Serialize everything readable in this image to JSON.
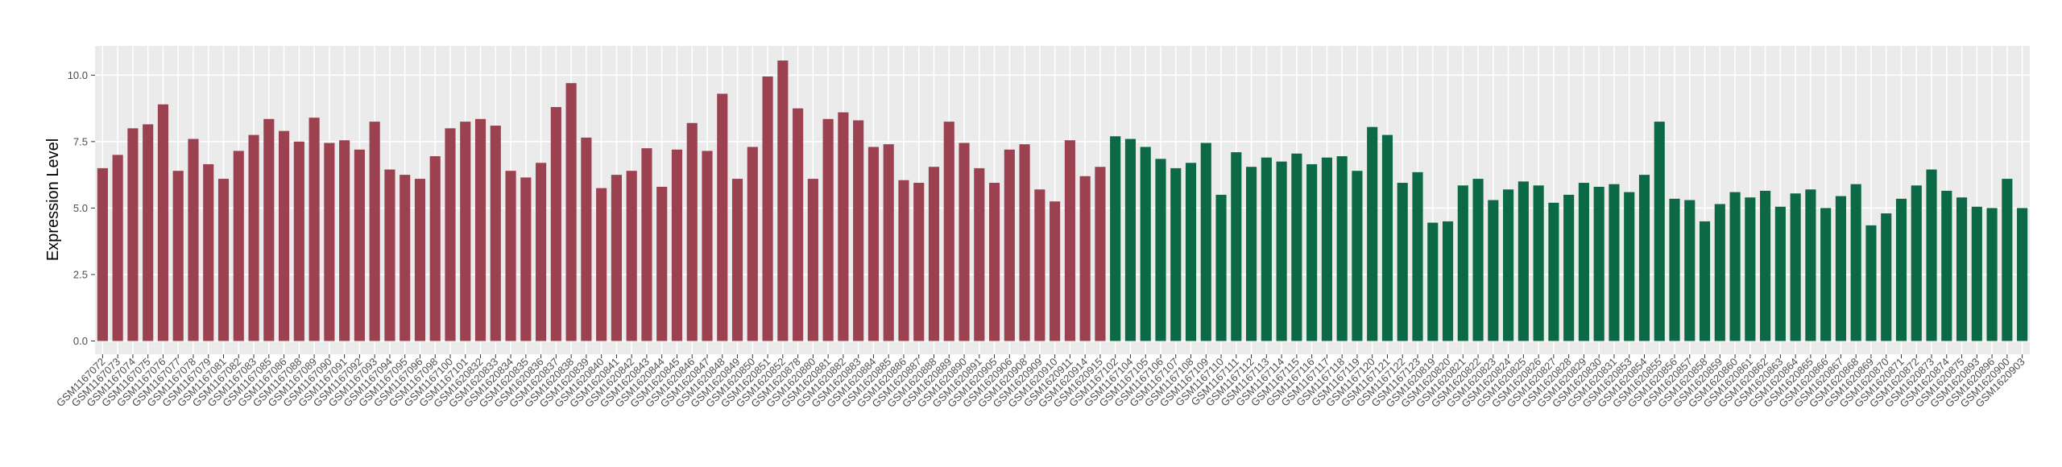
{
  "chart_data": {
    "type": "bar",
    "y_label": "Expression Level",
    "categories": [
      "GSM1167072",
      "GSM1167073",
      "GSM1167074",
      "GSM1167075",
      "GSM1167076",
      "GSM1167077",
      "GSM1167078",
      "GSM1167079",
      "GSM1167081",
      "GSM1167082",
      "GSM1167083",
      "GSM1167085",
      "GSM1167086",
      "GSM1167088",
      "GSM1167089",
      "GSM1167090",
      "GSM1167091",
      "GSM1167092",
      "GSM1167093",
      "GSM1167094",
      "GSM1167095",
      "GSM1167096",
      "GSM1167098",
      "GSM1167100",
      "GSM1167101",
      "GSM1620832",
      "GSM1620833",
      "GSM1620834",
      "GSM1620835",
      "GSM1620836",
      "GSM1620837",
      "GSM1620838",
      "GSM1620839",
      "GSM1620840",
      "GSM1620841",
      "GSM1620842",
      "GSM1620843",
      "GSM1620844",
      "GSM1620845",
      "GSM1620846",
      "GSM1620847",
      "GSM1620848",
      "GSM1620849",
      "GSM1620850",
      "GSM1620851",
      "GSM1620852",
      "GSM1620878",
      "GSM1620880",
      "GSM1620881",
      "GSM1620882",
      "GSM1620883",
      "GSM1620884",
      "GSM1620885",
      "GSM1620886",
      "GSM1620887",
      "GSM1620888",
      "GSM1620889",
      "GSM1620890",
      "GSM1620891",
      "GSM1620905",
      "GSM1620906",
      "GSM1620908",
      "GSM1620909",
      "GSM1620910",
      "GSM1620911",
      "GSM1620914",
      "GSM1620915",
      "GSM1167102",
      "GSM1167104",
      "GSM1167105",
      "GSM1167106",
      "GSM1167107",
      "GSM1167108",
      "GSM1167109",
      "GSM1167110",
      "GSM1167111",
      "GSM1167112",
      "GSM1167113",
      "GSM1167114",
      "GSM1167115",
      "GSM1167116",
      "GSM1167117",
      "GSM1167118",
      "GSM1167119",
      "GSM1167120",
      "GSM1167121",
      "GSM1167122",
      "GSM1167123",
      "GSM1620819",
      "GSM1620820",
      "GSM1620821",
      "GSM1620822",
      "GSM1620823",
      "GSM1620824",
      "GSM1620825",
      "GSM1620826",
      "GSM1620827",
      "GSM1620828",
      "GSM1620829",
      "GSM1620830",
      "GSM1620831",
      "GSM1620853",
      "GSM1620854",
      "GSM1620855",
      "GSM1620856",
      "GSM1620857",
      "GSM1620858",
      "GSM1620859",
      "GSM1620860",
      "GSM1620861",
      "GSM1620862",
      "GSM1620863",
      "GSM1620864",
      "GSM1620865",
      "GSM1620866",
      "GSM1620867",
      "GSM1620868",
      "GSM1620869",
      "GSM1620870",
      "GSM1620871",
      "GSM1620872",
      "GSM1620873",
      "GSM1620874",
      "GSM1620875",
      "GSM1620893",
      "GSM1620896",
      "GSM1620900",
      "GSM1620903"
    ],
    "values": [
      6.5,
      7.0,
      8.0,
      8.15,
      8.9,
      6.4,
      7.6,
      6.65,
      6.1,
      7.15,
      7.75,
      8.35,
      7.9,
      7.5,
      8.4,
      7.45,
      7.55,
      7.2,
      8.25,
      6.45,
      6.25,
      6.1,
      6.95,
      8.0,
      8.25,
      8.35,
      8.1,
      6.4,
      6.15,
      6.7,
      8.8,
      9.7,
      7.65,
      5.75,
      6.25,
      6.4,
      7.25,
      5.8,
      7.2,
      8.2,
      7.15,
      9.3,
      6.1,
      7.3,
      9.95,
      10.55,
      8.75,
      6.1,
      8.35,
      8.6,
      8.3,
      7.3,
      7.4,
      6.05,
      5.95,
      6.55,
      8.25,
      7.45,
      6.5,
      5.95,
      7.2,
      7.4,
      5.7,
      5.25,
      7.55,
      6.2,
      6.55,
      7.7,
      7.6,
      7.3,
      6.85,
      6.5,
      6.7,
      7.45,
      5.5,
      7.1,
      6.55,
      6.9,
      6.75,
      7.05,
      6.65,
      6.9,
      6.95,
      6.4,
      8.05,
      7.75,
      5.95,
      6.35,
      4.45,
      4.5,
      5.85,
      6.1,
      5.3,
      5.7,
      6.0,
      5.85,
      5.2,
      5.5,
      5.95,
      5.8,
      5.9,
      5.6,
      6.25,
      8.25,
      5.35,
      5.3,
      4.5,
      5.15,
      5.6,
      5.4,
      5.65,
      5.05,
      5.55,
      5.7,
      5.0,
      5.45,
      5.9,
      4.35,
      4.8,
      5.35,
      5.85,
      6.45,
      5.65,
      5.4,
      5.05,
      5.0,
      6.1,
      5.0
    ],
    "colors": [
      "#9b4150",
      "#9b4150",
      "#9b4150",
      "#9b4150",
      "#9b4150",
      "#9b4150",
      "#9b4150",
      "#9b4150",
      "#9b4150",
      "#9b4150",
      "#9b4150",
      "#9b4150",
      "#9b4150",
      "#9b4150",
      "#9b4150",
      "#9b4150",
      "#9b4150",
      "#9b4150",
      "#9b4150",
      "#9b4150",
      "#9b4150",
      "#9b4150",
      "#9b4150",
      "#9b4150",
      "#9b4150",
      "#9b4150",
      "#9b4150",
      "#9b4150",
      "#9b4150",
      "#9b4150",
      "#9b4150",
      "#9b4150",
      "#9b4150",
      "#9b4150",
      "#9b4150",
      "#9b4150",
      "#9b4150",
      "#9b4150",
      "#9b4150",
      "#9b4150",
      "#9b4150",
      "#9b4150",
      "#9b4150",
      "#9b4150",
      "#9b4150",
      "#9b4150",
      "#9b4150",
      "#9b4150",
      "#9b4150",
      "#9b4150",
      "#9b4150",
      "#9b4150",
      "#9b4150",
      "#9b4150",
      "#9b4150",
      "#9b4150",
      "#9b4150",
      "#9b4150",
      "#9b4150",
      "#9b4150",
      "#9b4150",
      "#9b4150",
      "#9b4150",
      "#9b4150",
      "#9b4150",
      "#9b4150",
      "#9b4150",
      "#0b6a45",
      "#0b6a45",
      "#0b6a45",
      "#0b6a45",
      "#0b6a45",
      "#0b6a45",
      "#0b6a45",
      "#0b6a45",
      "#0b6a45",
      "#0b6a45",
      "#0b6a45",
      "#0b6a45",
      "#0b6a45",
      "#0b6a45",
      "#0b6a45",
      "#0b6a45",
      "#0b6a45",
      "#0b6a45",
      "#0b6a45",
      "#0b6a45",
      "#0b6a45",
      "#0b6a45",
      "#0b6a45",
      "#0b6a45",
      "#0b6a45",
      "#0b6a45",
      "#0b6a45",
      "#0b6a45",
      "#0b6a45",
      "#0b6a45",
      "#0b6a45",
      "#0b6a45",
      "#0b6a45",
      "#0b6a45",
      "#0b6a45",
      "#0b6a45",
      "#0b6a45",
      "#0b6a45",
      "#0b6a45",
      "#0b6a45",
      "#0b6a45",
      "#0b6a45",
      "#0b6a45",
      "#0b6a45",
      "#0b6a45",
      "#0b6a45",
      "#0b6a45",
      "#0b6a45",
      "#0b6a45",
      "#0b6a45",
      "#0b6a45",
      "#0b6a45",
      "#0b6a45",
      "#0b6a45",
      "#0b6a45",
      "#0b6a45",
      "#0b6a45",
      "#0b6a45",
      "#0b6a45",
      "#0b6a45",
      "#0b6a45"
    ],
    "ylim": [
      -0.5,
      11.1
    ],
    "yticks": [
      {
        "value": 0,
        "label": "0.0"
      },
      2.5,
      {
        "value": 5,
        "label": "5.0"
      },
      7.5,
      {
        "value": 10,
        "label": "10.0"
      }
    ],
    "grid": true
  }
}
